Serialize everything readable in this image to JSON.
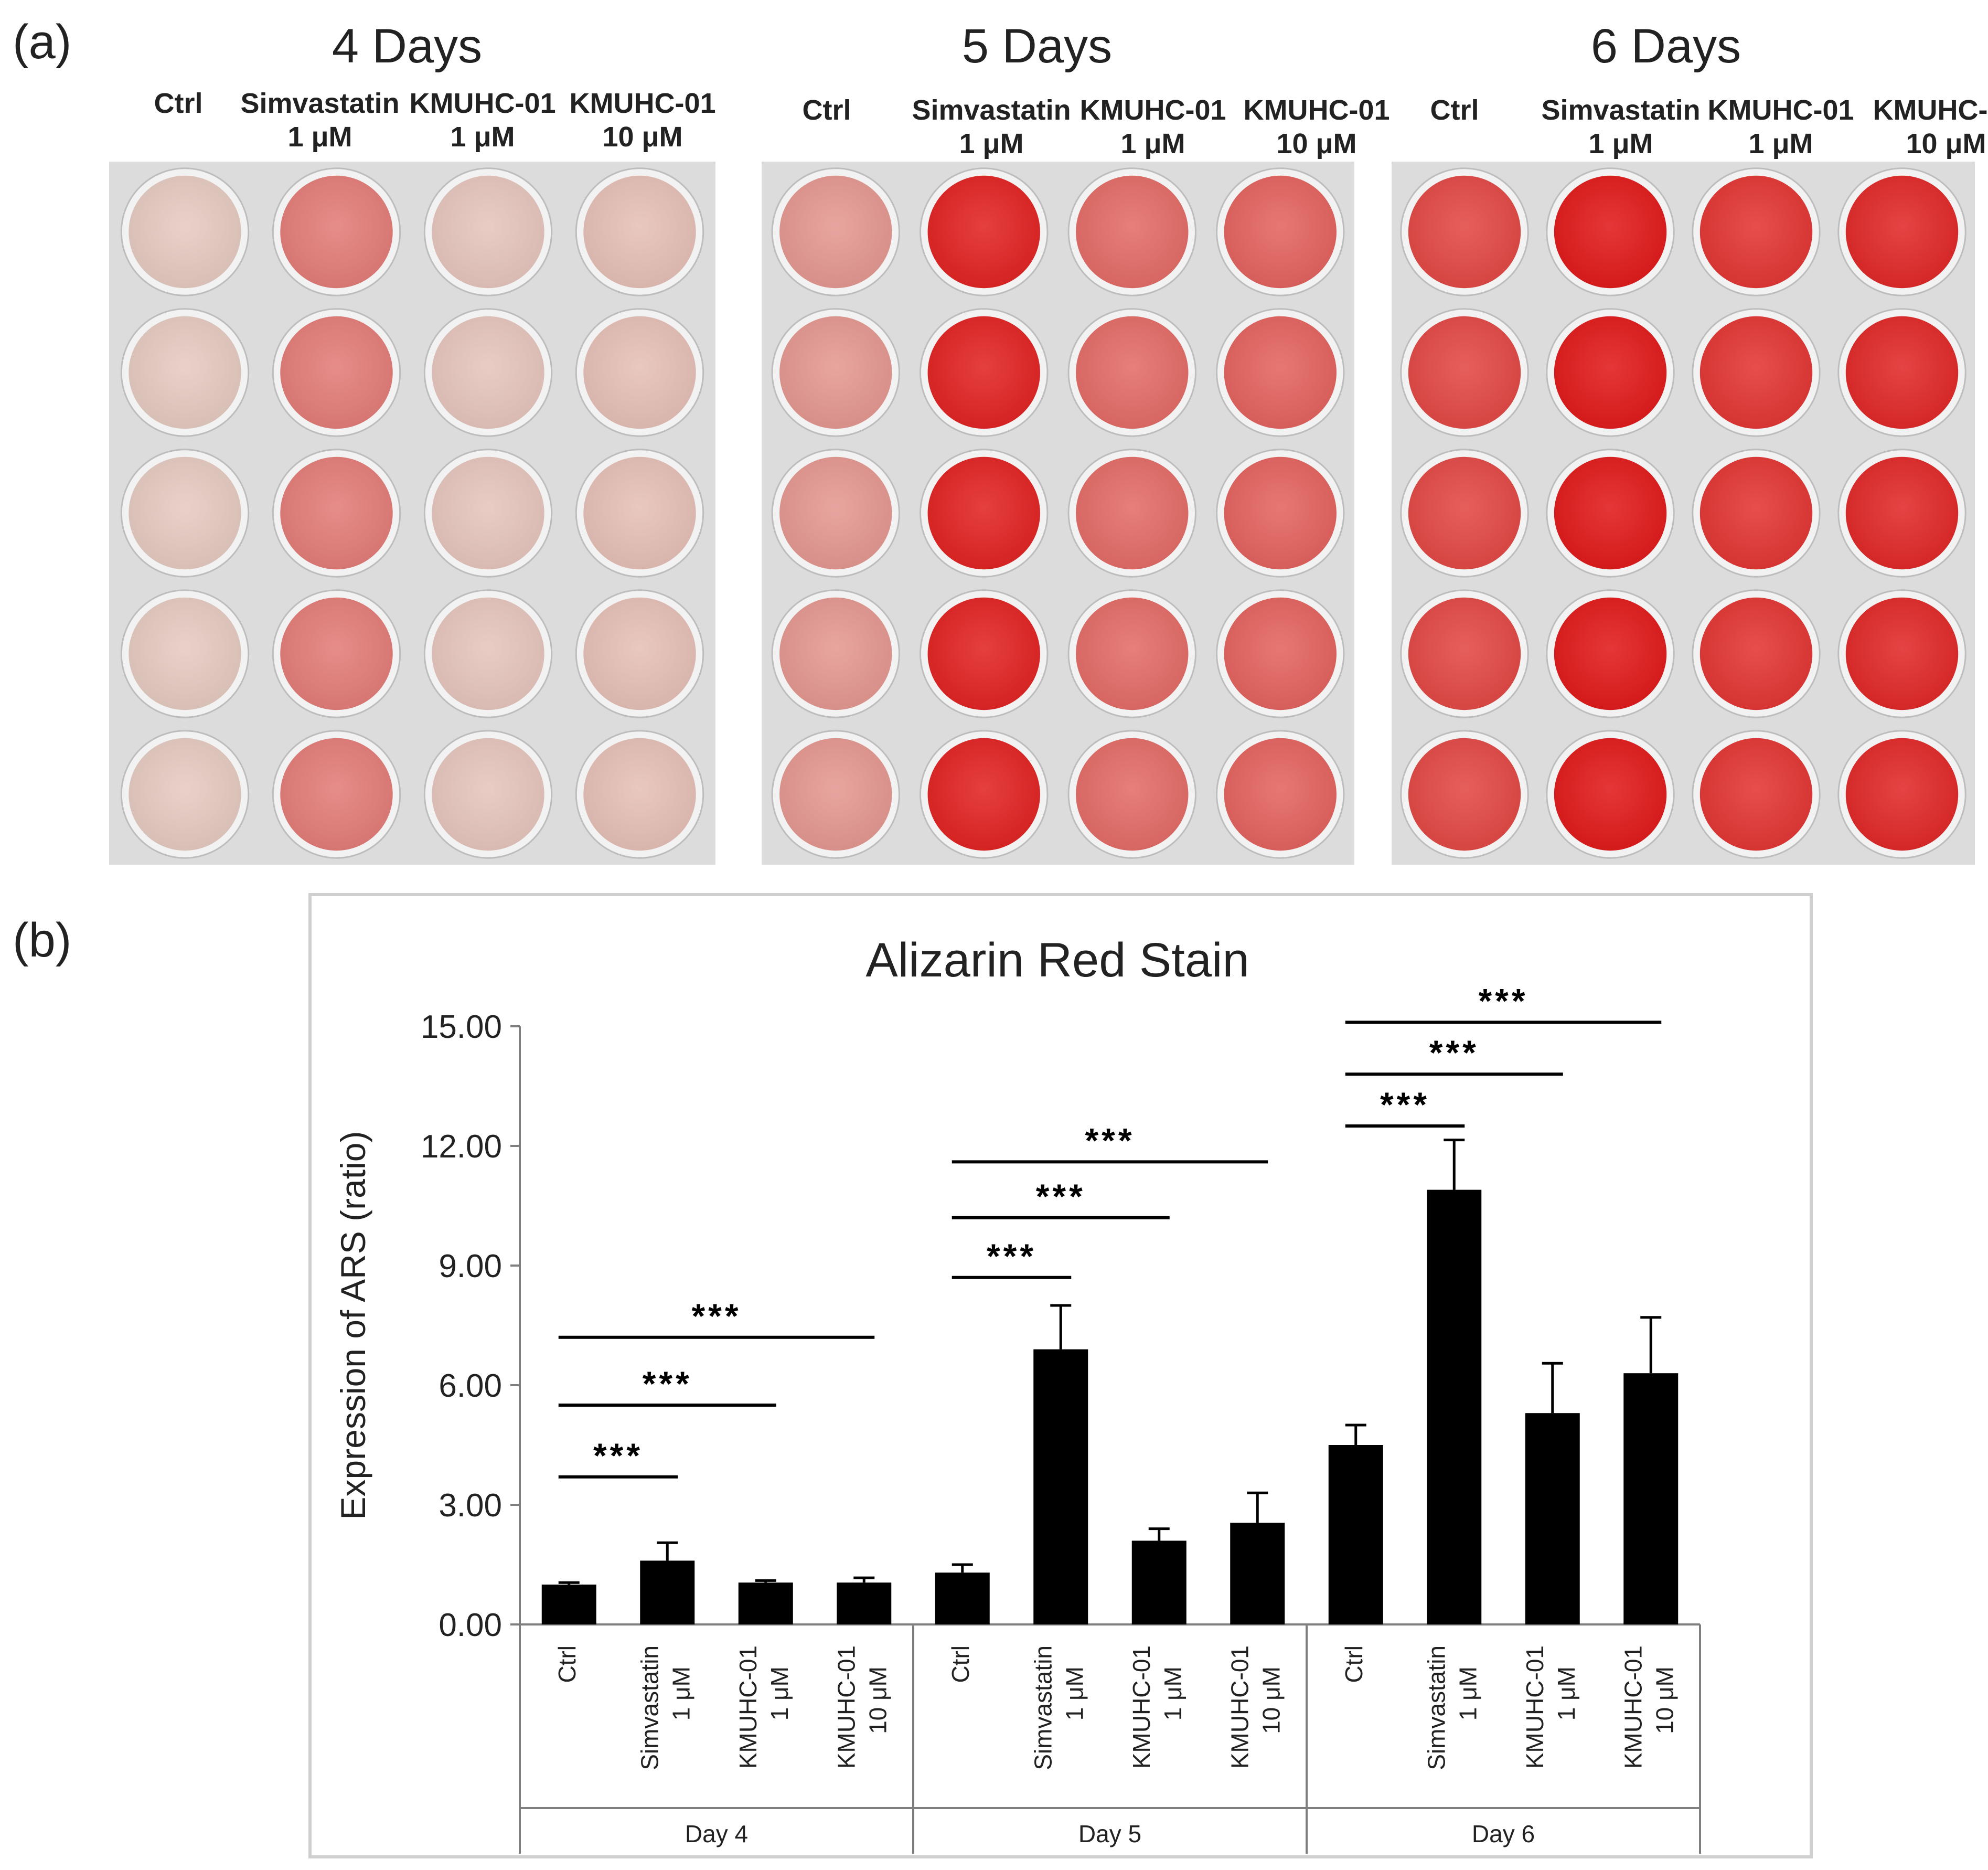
{
  "panel_a": {
    "letter": "(a)",
    "plates": [
      {
        "title": "4 Days",
        "stain_level": 0.15
      },
      {
        "title": "5 Days",
        "stain_level": 0.55
      },
      {
        "title": "6 Days",
        "stain_level": 0.9
      }
    ],
    "columns": [
      {
        "line1": "Ctrl",
        "line2": ""
      },
      {
        "line1": "Simvastatin",
        "line2": "1 μM"
      },
      {
        "line1": "KMUHC-01",
        "line2": "1 μM"
      },
      {
        "line1": "KMUHC-01",
        "line2": "10 μM"
      }
    ],
    "well_stain_matrix": [
      [
        0.02,
        0.45,
        0.05,
        0.08
      ],
      [
        0.3,
        0.95,
        0.55,
        0.6
      ],
      [
        0.75,
        1.0,
        0.85,
        0.92
      ]
    ],
    "colors": {
      "unstained": "#e6cfc5",
      "stained": "#e21c1c",
      "plate_bg": "#dcdcdc"
    }
  },
  "panel_b": {
    "letter": "(b)"
  },
  "chart_data": {
    "type": "bar",
    "title": "Alizarin Red Stain",
    "ylabel": "Expression of ARS (ratio)",
    "xlabel": "",
    "ylim": [
      0,
      15
    ],
    "yticks": [
      "0.00",
      "3.00",
      "6.00",
      "9.00",
      "12.00",
      "15.00"
    ],
    "groups": [
      {
        "name": "Day 4",
        "bars": [
          {
            "label1": "Ctrl",
            "label2": "",
            "value": 1.0,
            "error": 0.05
          },
          {
            "label1": "Simvastatin",
            "label2": "1 μM",
            "value": 1.6,
            "error": 0.45
          },
          {
            "label1": "KMUHC-01",
            "label2": "1 μM",
            "value": 1.05,
            "error": 0.05
          },
          {
            "label1": "KMUHC-01",
            "label2": "10 μM",
            "value": 1.05,
            "error": 0.12
          }
        ]
      },
      {
        "name": "Day 5",
        "bars": [
          {
            "label1": "Ctrl",
            "label2": "",
            "value": 1.3,
            "error": 0.2
          },
          {
            "label1": "Simvastatin",
            "label2": "1 μM",
            "value": 6.9,
            "error": 1.1
          },
          {
            "label1": "KMUHC-01",
            "label2": "1 μM",
            "value": 2.1,
            "error": 0.3
          },
          {
            "label1": "KMUHC-01",
            "label2": "10 μM",
            "value": 2.55,
            "error": 0.75
          }
        ]
      },
      {
        "name": "Day 6",
        "bars": [
          {
            "label1": "Ctrl",
            "label2": "",
            "value": 4.5,
            "error": 0.5
          },
          {
            "label1": "Simvastatin",
            "label2": "1 μM",
            "value": 10.9,
            "error": 1.25
          },
          {
            "label1": "KMUHC-01",
            "label2": "1 μM",
            "value": 5.3,
            "error": 1.25
          },
          {
            "label1": "KMUHC-01",
            "label2": "10 μM",
            "value": 6.3,
            "error": 1.4
          }
        ]
      }
    ],
    "significance": [
      {
        "group": 0,
        "from": 0,
        "to": 1,
        "level": 3.7,
        "label": "***"
      },
      {
        "group": 0,
        "from": 0,
        "to": 2,
        "level": 5.5,
        "label": "***"
      },
      {
        "group": 0,
        "from": 0,
        "to": 3,
        "level": 7.2,
        "label": "***"
      },
      {
        "group": 1,
        "from": 0,
        "to": 1,
        "level": 8.7,
        "label": "***"
      },
      {
        "group": 1,
        "from": 0,
        "to": 2,
        "level": 10.2,
        "label": "***"
      },
      {
        "group": 1,
        "from": 0,
        "to": 3,
        "level": 11.6,
        "label": "***"
      },
      {
        "group": 2,
        "from": 0,
        "to": 1,
        "level": 12.5,
        "label": "***"
      },
      {
        "group": 2,
        "from": 0,
        "to": 2,
        "level": 13.8,
        "label": "***"
      },
      {
        "group": 2,
        "from": 0,
        "to": 3,
        "level": 15.1,
        "label": "***"
      }
    ],
    "colors": {
      "bar": "#000000",
      "axis": "#7f7f7f",
      "text": "#222222"
    }
  }
}
